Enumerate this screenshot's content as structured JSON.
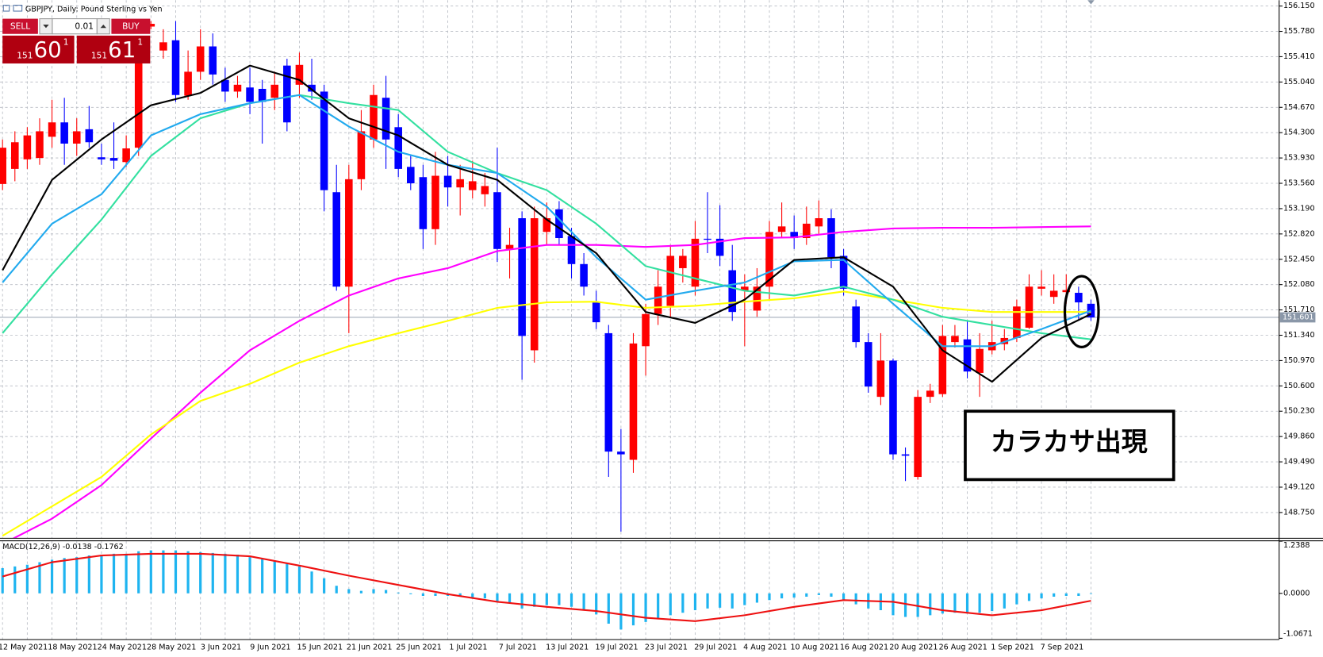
{
  "header": {
    "title": "GBPJPY, Daily:  Pound Sterling vs Yen"
  },
  "trade_panel": {
    "sell_label": "SELL",
    "buy_label": "BUY",
    "lot": "0.01",
    "bid": {
      "big": "151",
      "main": "60",
      "small": "1"
    },
    "ask": {
      "big": "151",
      "main": "61",
      "small": "1"
    }
  },
  "chart_data": [
    {
      "type": "candlestick",
      "categories": [
        null,
        null,
        "12 May 2021",
        null,
        null,
        null,
        "18 May 2021",
        null,
        null,
        null,
        "24 May 2021",
        null,
        null,
        null,
        "28 May 2021",
        null,
        null,
        null,
        "3 Jun 2021",
        null,
        null,
        null,
        "9 Jun 2021",
        null,
        null,
        null,
        "15 Jun 2021",
        null,
        null,
        null,
        "21 Jun 2021",
        null,
        null,
        null,
        "25 Jun 2021",
        null,
        null,
        null,
        "1 Jul 2021",
        null,
        null,
        null,
        "7 Jul 2021",
        null,
        null,
        null,
        "13 Jul 2021",
        null,
        null,
        null,
        "19 Jul 2021",
        null,
        null,
        null,
        "23 Jul 2021",
        null,
        null,
        null,
        "29 Jul 2021",
        null,
        null,
        null,
        "4 Aug 2021",
        null,
        null,
        null,
        "10 Aug 2021",
        null,
        null,
        null,
        "16 Aug 2021",
        null,
        null,
        null,
        "20 Aug 2021",
        null,
        null,
        null,
        "26 Aug 2021",
        null,
        null,
        null,
        "1 Sep 2021",
        null,
        null,
        null,
        "7 Sep 2021",
        null,
        null
      ],
      "open": [
        153.55,
        153.77,
        153.91,
        153.93,
        154.24,
        154.45,
        154.14,
        154.35,
        153.94,
        153.93,
        153.87,
        154.08,
        155.85,
        155.5,
        155.65,
        154.84,
        155.19,
        155.56,
        155.07,
        154.9,
        154.96,
        154.94,
        154.81,
        155.28,
        155.0,
        155.0,
        154.9,
        153.43,
        152.05,
        153.62,
        154.2,
        154.81,
        154.38,
        153.8,
        153.65,
        152.89,
        153.67,
        153.5,
        153.46,
        153.4,
        153.43,
        152.6,
        153.05,
        151.12,
        152.85,
        153.18,
        152.79,
        152.38,
        151.82,
        151.37,
        149.64,
        149.52,
        151.18,
        151.65,
        151.77,
        152.32,
        152.05,
        152.75,
        152.75,
        152.29,
        151.99,
        151.7,
        152.05,
        152.85,
        152.85,
        152.76,
        152.93,
        153.05,
        152.5,
        151.76,
        151.24,
        150.44,
        150.97,
        149.6,
        149.27,
        150.44,
        150.48,
        151.24,
        151.28,
        150.79,
        151.12,
        151.21,
        151.3,
        151.45,
        152.02,
        151.9,
        151.97,
        151.96,
        151.8
      ],
      "high": [
        154.2,
        154.32,
        154.38,
        154.51,
        154.78,
        154.81,
        154.51,
        154.69,
        154.14,
        154.45,
        154.26,
        155.68,
        155.93,
        155.81,
        155.93,
        155.5,
        155.81,
        155.75,
        155.25,
        155.13,
        155.25,
        155.07,
        155.19,
        155.38,
        155.47,
        155.38,
        155.0,
        153.83,
        153.83,
        154.63,
        155.0,
        155.13,
        154.57,
        153.96,
        153.83,
        154.02,
        153.96,
        153.83,
        153.89,
        153.71,
        154.08,
        152.91,
        153.15,
        153.22,
        153.28,
        153.3,
        152.91,
        152.54,
        151.99,
        151.49,
        149.97,
        151.37,
        151.8,
        152.29,
        152.66,
        152.6,
        153.01,
        153.43,
        153.24,
        152.66,
        152.23,
        152.32,
        153.01,
        153.28,
        153.09,
        153.22,
        153.31,
        153.18,
        152.6,
        151.86,
        151.37,
        151.37,
        151.0,
        149.7,
        150.54,
        150.63,
        151.49,
        151.49,
        151.55,
        151.37,
        151.55,
        151.43,
        151.86,
        152.23,
        152.29,
        152.23,
        152.23,
        152.05,
        151.86
      ],
      "low": [
        153.46,
        153.59,
        153.77,
        153.83,
        154.08,
        153.83,
        153.96,
        154.08,
        153.83,
        153.77,
        153.8,
        153.96,
        155.81,
        155.38,
        154.75,
        154.78,
        155.07,
        155.0,
        154.75,
        154.81,
        154.57,
        154.14,
        154.63,
        154.32,
        154.81,
        154.78,
        153.15,
        151.99,
        151.37,
        153.46,
        154.08,
        153.77,
        153.65,
        153.46,
        152.6,
        152.66,
        153.22,
        153.09,
        153.34,
        153.22,
        152.41,
        152.17,
        150.69,
        150.94,
        152.66,
        152.66,
        152.17,
        151.92,
        151.43,
        149.27,
        148.47,
        149.33,
        150.75,
        151.49,
        151.61,
        152.11,
        151.92,
        152.54,
        152.35,
        151.55,
        151.18,
        151.61,
        151.86,
        152.76,
        152.6,
        152.66,
        152.81,
        152.32,
        151.92,
        151.16,
        150.5,
        150.32,
        149.52,
        149.21,
        149.23,
        150.35,
        150.44,
        151.16,
        150.71,
        150.44,
        151.06,
        151.12,
        151.24,
        151.43,
        151.92,
        151.8,
        151.8,
        151.55,
        151.55
      ],
      "close": [
        154.08,
        154.16,
        154.26,
        154.32,
        154.45,
        154.14,
        154.32,
        154.16,
        153.91,
        153.89,
        154.07,
        155.56,
        155.89,
        155.62,
        154.85,
        155.19,
        155.56,
        155.15,
        154.9,
        155.0,
        154.75,
        154.75,
        155.0,
        154.45,
        155.29,
        154.9,
        153.46,
        152.05,
        153.62,
        154.32,
        154.85,
        154.2,
        153.77,
        153.56,
        152.89,
        153.67,
        153.5,
        153.62,
        153.59,
        153.52,
        152.6,
        152.66,
        151.33,
        153.05,
        153.05,
        152.76,
        152.38,
        152.05,
        151.53,
        149.64,
        149.6,
        151.22,
        151.65,
        152.05,
        152.5,
        152.5,
        152.75,
        152.74,
        152.5,
        151.68,
        152.05,
        152.05,
        152.85,
        152.93,
        152.76,
        152.97,
        153.05,
        152.48,
        152.02,
        151.24,
        150.59,
        150.97,
        149.6,
        149.58,
        150.44,
        150.53,
        151.33,
        151.33,
        150.81,
        151.14,
        151.24,
        151.3,
        151.76,
        152.05,
        152.05,
        151.99,
        152.0,
        151.82,
        151.6
      ],
      "up_color": "#ff0000",
      "down_color": "#0000ff",
      "moving_averages": [
        {
          "color": "#ff00ff",
          "x": [
            0,
            4,
            8,
            12,
            16,
            20,
            24,
            28,
            32,
            36,
            40,
            44,
            48,
            52,
            56,
            60,
            64,
            68,
            72,
            76,
            80,
            84,
            88
          ],
          "values": [
            148.29,
            148.66,
            149.15,
            149.83,
            150.5,
            151.12,
            151.55,
            151.92,
            152.17,
            152.32,
            152.57,
            152.66,
            152.66,
            152.63,
            152.66,
            152.76,
            152.77,
            152.85,
            152.9,
            152.91,
            152.91,
            152.92,
            152.93
          ]
        },
        {
          "color": "#ffff00",
          "x": [
            0,
            4,
            8,
            12,
            16,
            20,
            24,
            28,
            32,
            36,
            40,
            44,
            48,
            52,
            56,
            60,
            64,
            68,
            72,
            76,
            80,
            84,
            88
          ],
          "values": [
            148.41,
            148.84,
            149.27,
            149.89,
            150.38,
            150.63,
            150.94,
            151.18,
            151.37,
            151.55,
            151.74,
            151.82,
            151.83,
            151.74,
            151.77,
            151.83,
            151.88,
            151.98,
            151.86,
            151.74,
            151.68,
            151.68,
            151.68
          ]
        },
        {
          "color": "#33e0a0",
          "x": [
            0,
            4,
            8,
            12,
            16,
            20,
            24,
            28,
            32,
            36,
            40,
            44,
            48,
            52,
            56,
            60,
            64,
            68,
            72,
            76,
            80,
            84,
            88
          ],
          "values": [
            151.37,
            152.23,
            153.03,
            153.96,
            154.51,
            154.73,
            154.85,
            154.73,
            154.63,
            154.02,
            153.71,
            153.46,
            152.97,
            152.35,
            152.17,
            151.99,
            151.92,
            152.05,
            151.86,
            151.61,
            151.49,
            151.37,
            151.28
          ]
        },
        {
          "color": "#22aaee",
          "x": [
            0,
            4,
            8,
            12,
            16,
            20,
            24,
            28,
            32,
            36,
            40,
            44,
            48,
            52,
            56,
            60,
            64,
            68,
            72,
            76,
            80,
            84,
            88
          ],
          "values": [
            152.11,
            152.97,
            153.4,
            154.26,
            154.57,
            154.73,
            154.85,
            154.39,
            154.02,
            153.83,
            153.71,
            153.22,
            152.48,
            151.86,
            151.99,
            152.11,
            152.42,
            152.44,
            151.8,
            151.18,
            151.18,
            151.43,
            151.7
          ]
        },
        {
          "color": "#000000",
          "x": [
            0,
            4,
            8,
            12,
            16,
            20,
            24,
            28,
            32,
            36,
            40,
            44,
            48,
            52,
            56,
            60,
            64,
            68,
            72,
            76,
            80,
            84,
            88
          ],
          "values": [
            152.29,
            153.61,
            154.2,
            154.7,
            154.88,
            155.28,
            155.07,
            154.51,
            154.26,
            153.83,
            153.61,
            153.03,
            152.54,
            151.68,
            151.52,
            151.86,
            152.44,
            152.48,
            152.05,
            151.12,
            150.66,
            151.3,
            151.65
          ]
        }
      ],
      "current_price": 151.601,
      "ylim": [
        148.38,
        156.236
      ],
      "yticks": [
        {
          "value": 156.15,
          "label": "156.150"
        },
        {
          "value": 155.78,
          "label": "155.780"
        },
        {
          "value": 155.41,
          "label": "155.410"
        },
        {
          "value": 155.04,
          "label": "155.040"
        },
        {
          "value": 154.67,
          "label": "154.670"
        },
        {
          "value": 154.3,
          "label": "154.300"
        },
        {
          "value": 153.93,
          "label": "153.930"
        },
        {
          "value": 153.56,
          "label": "153.560"
        },
        {
          "value": 153.19,
          "label": "153.190"
        },
        {
          "value": 152.82,
          "label": "152.820"
        },
        {
          "value": 152.45,
          "label": "152.450"
        },
        {
          "value": 152.08,
          "label": "152.080"
        },
        {
          "value": 151.71,
          "label": "151.710"
        },
        {
          "value": 151.34,
          "label": "151.340"
        },
        {
          "value": 150.97,
          "label": "150.970"
        },
        {
          "value": 150.6,
          "label": "150.600"
        },
        {
          "value": 150.23,
          "label": "150.230"
        },
        {
          "value": 149.86,
          "label": "149.860"
        },
        {
          "value": 149.49,
          "label": "149.490"
        },
        {
          "value": 149.12,
          "label": "149.120"
        },
        {
          "value": 148.75,
          "label": "148.750"
        }
      ],
      "grid": true,
      "annotation": "カラカサ出現"
    },
    {
      "type": "macd",
      "title": "MACD(12,26,9) -0.0138 -0.1762",
      "histogram": {
        "color": "#1eb4f0",
        "values": [
          0.6,
          0.64,
          0.68,
          0.74,
          0.8,
          0.84,
          0.86,
          0.9,
          0.92,
          0.94,
          0.94,
          1.0,
          1.02,
          1.02,
          1.02,
          1.0,
          0.98,
          0.96,
          0.94,
          0.92,
          0.86,
          0.82,
          0.78,
          0.7,
          0.64,
          0.52,
          0.36,
          0.18,
          0.1,
          0.06,
          0.1,
          0.08,
          0.02,
          -0.02,
          -0.06,
          -0.06,
          -0.06,
          -0.08,
          -0.1,
          -0.12,
          -0.2,
          -0.24,
          -0.36,
          -0.32,
          -0.28,
          -0.28,
          -0.32,
          -0.4,
          -0.5,
          -0.72,
          -0.86,
          -0.76,
          -0.68,
          -0.6,
          -0.52,
          -0.46,
          -0.4,
          -0.36,
          -0.34,
          -0.36,
          -0.28,
          -0.22,
          -0.16,
          -0.12,
          -0.1,
          -0.08,
          -0.04,
          -0.08,
          -0.16,
          -0.26,
          -0.36,
          -0.4,
          -0.52,
          -0.56,
          -0.56,
          -0.52,
          -0.48,
          -0.46,
          -0.48,
          -0.46,
          -0.42,
          -0.36,
          -0.26,
          -0.18,
          -0.12,
          -0.08,
          -0.06,
          -0.06,
          -0.0138
        ]
      },
      "signal": {
        "color": "#ee1111",
        "x": [
          0,
          4,
          8,
          12,
          16,
          20,
          24,
          28,
          32,
          36,
          40,
          44,
          48,
          52,
          56,
          60,
          64,
          68,
          72,
          76,
          80,
          84,
          88
        ],
        "values": [
          0.4,
          0.74,
          0.9,
          0.94,
          0.94,
          0.88,
          0.66,
          0.42,
          0.2,
          -0.02,
          -0.2,
          -0.32,
          -0.42,
          -0.58,
          -0.66,
          -0.52,
          -0.32,
          -0.16,
          -0.2,
          -0.4,
          -0.52,
          -0.4,
          -0.1762
        ]
      },
      "ylim": [
        -1.0671,
        1.2388
      ],
      "yticks": [
        1.2388,
        {
          "value": 0,
          "label": "0.0000"
        },
        -1.0671
      ]
    }
  ]
}
